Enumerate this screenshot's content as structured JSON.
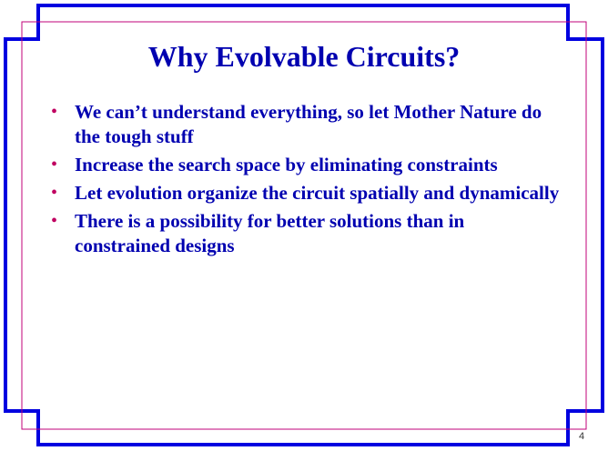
{
  "slide": {
    "title": "Why Evolvable Circuits?",
    "bullets": [
      {
        "marker": "•",
        "text": "We can’t understand everything, so let Mother Nature do the tough stuff"
      },
      {
        "marker": "•",
        "text": "Increase the search space by eliminating constraints"
      },
      {
        "marker": "•",
        "text": "Let evolution organize the circuit spatially and dynamically"
      },
      {
        "marker": "•",
        "text": "There is a possibility for better solutions than in constrained designs"
      }
    ],
    "page_number": "4"
  },
  "colors": {
    "frame_blue": "#0000e0",
    "inner_border_magenta": "#c0007a",
    "title_text": "#0000b0",
    "bullet_marker": "#c00060"
  }
}
